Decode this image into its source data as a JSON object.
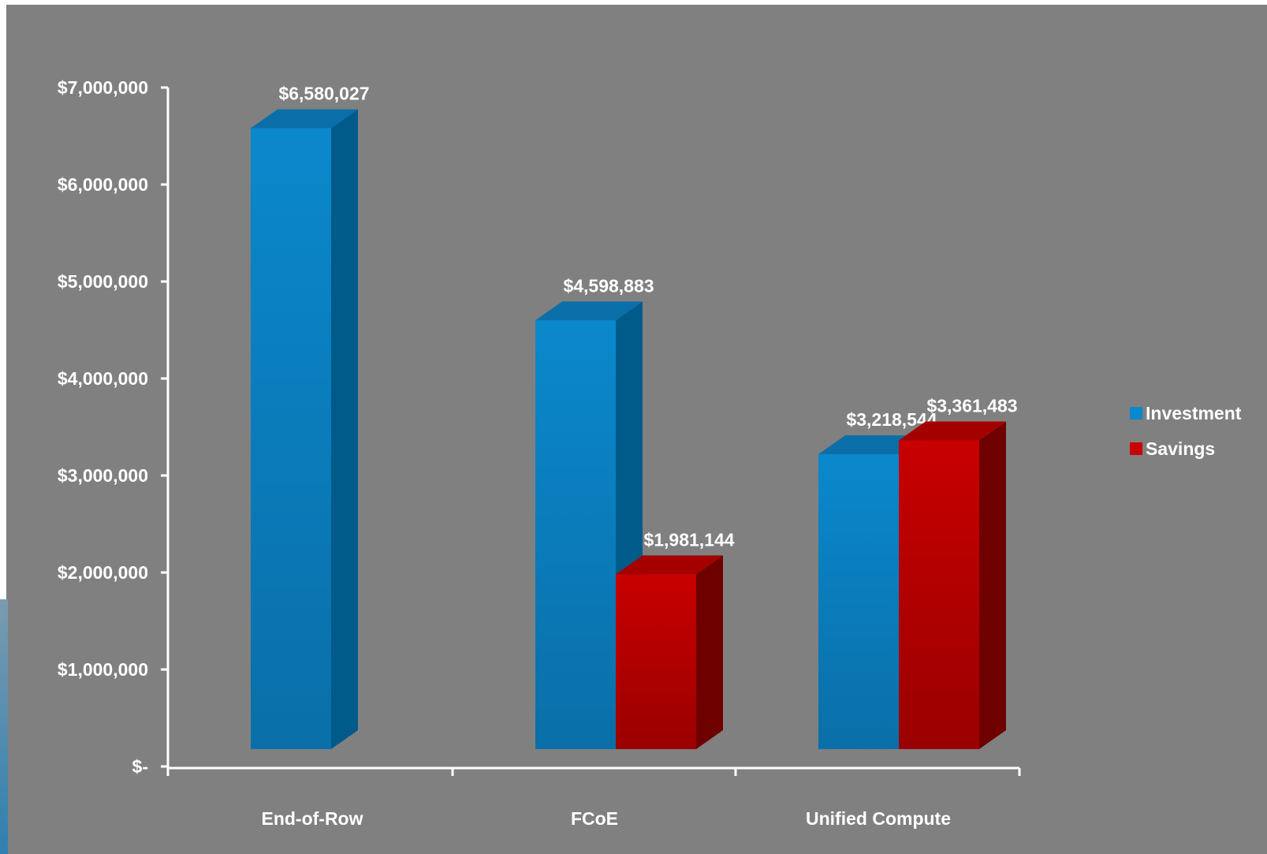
{
  "colors": {
    "background": "#808080",
    "axis": "#ffffff",
    "text": "#ffffff",
    "investment_front": "#0a88cc",
    "investment_side": "#005a8a",
    "investment_top": "#0a6fa8",
    "savings_front": "#c80000",
    "savings_side": "#6e0000",
    "savings_top": "#a50000"
  },
  "chart_data": {
    "type": "bar",
    "categories": [
      "End-of-Row",
      "FCoE",
      "Unified Compute"
    ],
    "series": [
      {
        "name": "Investment",
        "values": [
          6580027,
          4598883,
          3218544
        ],
        "labels": [
          "$6,580,027",
          "$4,598,883",
          "$3,218,544"
        ]
      },
      {
        "name": "Savings",
        "values": [
          null,
          1981144,
          3361483
        ],
        "labels": [
          "",
          "$1,981,144",
          "$3,361,483"
        ]
      }
    ],
    "ylim": [
      0,
      7000000
    ],
    "yticks": [
      0,
      1000000,
      2000000,
      3000000,
      4000000,
      5000000,
      6000000,
      7000000
    ],
    "ytick_labels": [
      "$-",
      "$1,000,000",
      "$2,000,000",
      "$3,000,000",
      "$4,000,000",
      "$5,000,000",
      "$6,000,000",
      "$7,000,000"
    ],
    "legend_position": "right",
    "grid": false,
    "style": "3d-column"
  }
}
